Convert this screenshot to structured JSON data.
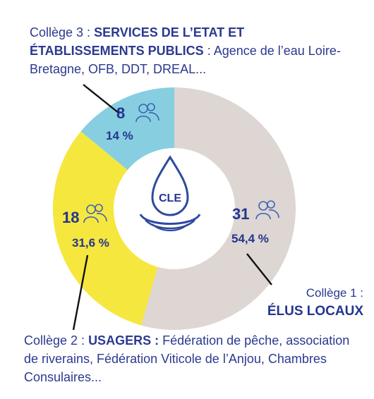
{
  "chart_data": {
    "type": "pie",
    "center_label": "CLE",
    "slices": [
      {
        "count": "31",
        "percent_label": "54,4 %",
        "value": 54.4,
        "color": "#ddd6d2"
      },
      {
        "count": "18",
        "percent_label": "31,6 %",
        "value": 31.6,
        "color": "#f6e73f"
      },
      {
        "count": "8",
        "percent_label": "14 %",
        "value": 14.0,
        "color": "#87cfe0"
      }
    ]
  },
  "college1": {
    "prefix": "Collège 1 :",
    "title": "ÉLUS LOCAUX"
  },
  "college2": {
    "prefix": "Collège 2 : ",
    "title": "USAGERS :",
    "rest": " Fédération de pêche, association de riverains, Fédération Viticole de l’Anjou, Chambres Consulaires..."
  },
  "college3": {
    "prefix": "Collège 3 : ",
    "title": "SERVICES DE L’ETAT ET ÉTABLISSEMENTS PUBLICS",
    "rest": " : Agence de l’eau Loire-Bretagne, OFB, DDT, DREAL..."
  },
  "colors": {
    "text": "#2b3990",
    "icon": "#3e64b4",
    "drop": "#2e4a9e"
  },
  "icons": {
    "people": "people-icon",
    "drop": "water-drop-icon"
  }
}
